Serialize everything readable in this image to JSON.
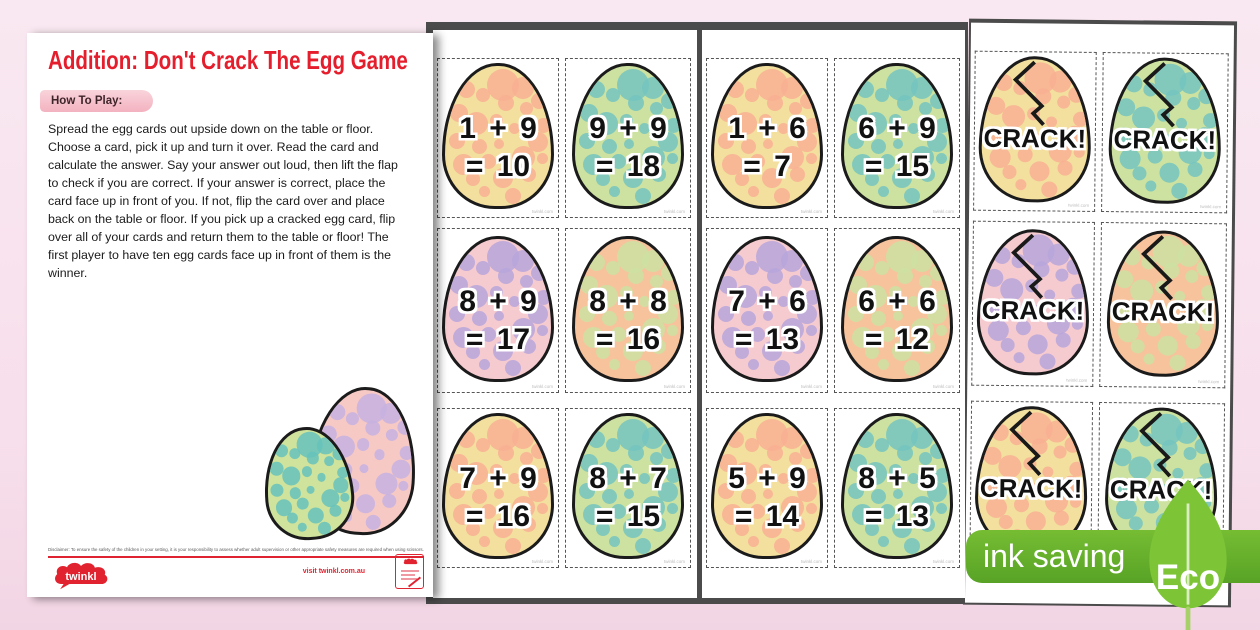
{
  "instructions_page": {
    "title": "Addition: Don't Crack The Egg Game",
    "how_to_play_label": "How To Play:",
    "instructions": "Spread the egg cards out upside down on the table or floor. Choose a card, pick it up and turn it over. Read the card and calculate the answer. Say your answer out loud, then lift the flap to check if you are correct. If your answer is correct, place the card face up in front of you. If not, flip the card over and place back on the table or floor. If you pick up a cracked egg card, flip over all of your cards and return them to the table or floor! The first player to have ten egg cards face up in front of them is the winner.",
    "disclaimer": "Disclaimer: To ensure the safety of the children in your setting, it is your responsibility to assess whether adult supervision or other appropriate safety measures are required when using scissors.",
    "brand": "twinkl",
    "visit_text": "visit twinkl.com.au"
  },
  "egg_palettes": {
    "yellow": {
      "base": "#f3df9e",
      "dots": "#f8b093"
    },
    "green": {
      "base": "#cde2a0",
      "dots": "#74c4c0"
    },
    "pink": {
      "base": "#f6cbd0",
      "dots": "#b7a6da"
    },
    "orange": {
      "base": "#f7c39c",
      "dots": "#cde2a2"
    },
    "deco_pink": {
      "base": "#f7c9c5",
      "dots": "#c5b2e0"
    },
    "deco_green": {
      "base": "#cfe39c",
      "dots": "#66c2bc"
    }
  },
  "card_pages": [
    {
      "cards": [
        {
          "expression": "1 + 9",
          "result": "= 10",
          "palette": "yellow"
        },
        {
          "expression": "9 + 9",
          "result": "= 18",
          "palette": "green"
        },
        {
          "expression": "8 + 9",
          "result": "= 17",
          "palette": "pink"
        },
        {
          "expression": "8 + 8",
          "result": "= 16",
          "palette": "orange"
        },
        {
          "expression": "7 + 9",
          "result": "= 16",
          "palette": "yellow"
        },
        {
          "expression": "8 + 7",
          "result": "= 15",
          "palette": "green"
        }
      ]
    },
    {
      "cards": [
        {
          "expression": "1 + 6",
          "result": "= 7",
          "palette": "yellow"
        },
        {
          "expression": "6 + 9",
          "result": "= 15",
          "palette": "green"
        },
        {
          "expression": "7 + 6",
          "result": "= 13",
          "palette": "pink"
        },
        {
          "expression": "6 + 6",
          "result": "= 12",
          "palette": "orange"
        },
        {
          "expression": "5 + 9",
          "result": "= 14",
          "palette": "yellow"
        },
        {
          "expression": "8 + 5",
          "result": "= 13",
          "palette": "green"
        }
      ]
    },
    {
      "cards": [
        {
          "label": "CRACK!",
          "palette": "yellow",
          "cracked": true
        },
        {
          "label": "CRACK!",
          "palette": "green",
          "cracked": true
        },
        {
          "label": "CRACK!",
          "palette": "pink",
          "cracked": true
        },
        {
          "label": "CRACK!",
          "palette": "orange",
          "cracked": true
        },
        {
          "label": "CRACK!",
          "palette": "yellow",
          "cracked": true
        },
        {
          "label": "CRACK!",
          "palette": "green",
          "cracked": true
        }
      ]
    }
  ],
  "watermark": "twinkl.com",
  "eco_badge": {
    "text": "ink saving",
    "eco_label": "Eco"
  }
}
